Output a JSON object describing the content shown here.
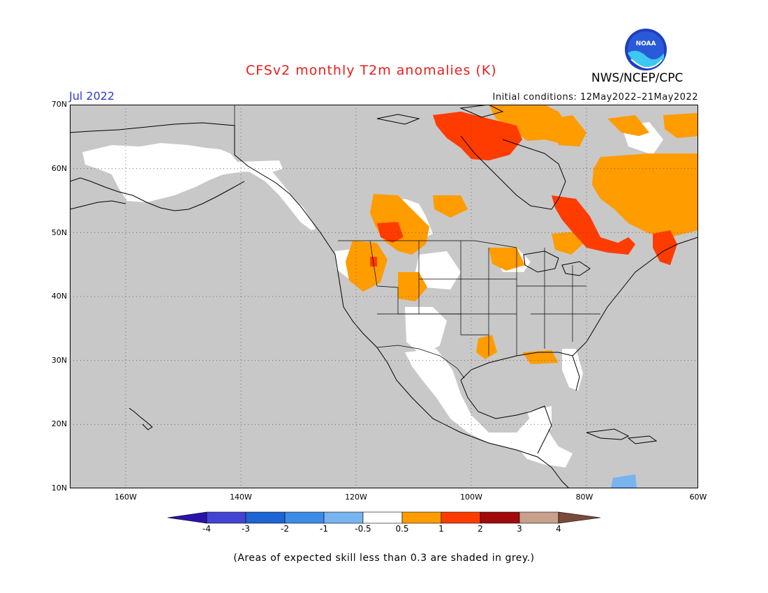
{
  "header": {
    "title": "CFSv2 monthly T2m anomalies (K)",
    "month": "Jul 2022",
    "initial_conditions": "Initial conditions: 12May2022–21May2022",
    "org": "NWS/NCEP/CPC",
    "logo_text": "NOAA"
  },
  "map": {
    "lat_ticks": [
      "70N",
      "60N",
      "50N",
      "40N",
      "30N",
      "20N",
      "10N"
    ],
    "lon_ticks": [
      "160W",
      "140W",
      "120W",
      "100W",
      "80W",
      "60W"
    ],
    "colors": {
      "grey_low_skill": "#c8c8c8",
      "neutral": "#ffffff",
      "warm_0_5_1": "#ff9c00",
      "warm_1_2": "#ff3c00",
      "cool_0_5_1": "#78b4f0",
      "coast": "#000000"
    }
  },
  "colorbar": {
    "labels": [
      "-4",
      "-3",
      "-2",
      "-1",
      "-0.5",
      "0.5",
      "1",
      "2",
      "3",
      "4"
    ],
    "colors": [
      "#2a14a8",
      "#4444d4",
      "#1e64d2",
      "#3c8ce6",
      "#78b4f0",
      "#ffffff",
      "#ff9c00",
      "#ff3c00",
      "#a00a0a",
      "#c8a08c",
      "#7a4a3a"
    ]
  },
  "footnote": "(Areas of expected skill less than 0.3 are shaded in grey.)"
}
